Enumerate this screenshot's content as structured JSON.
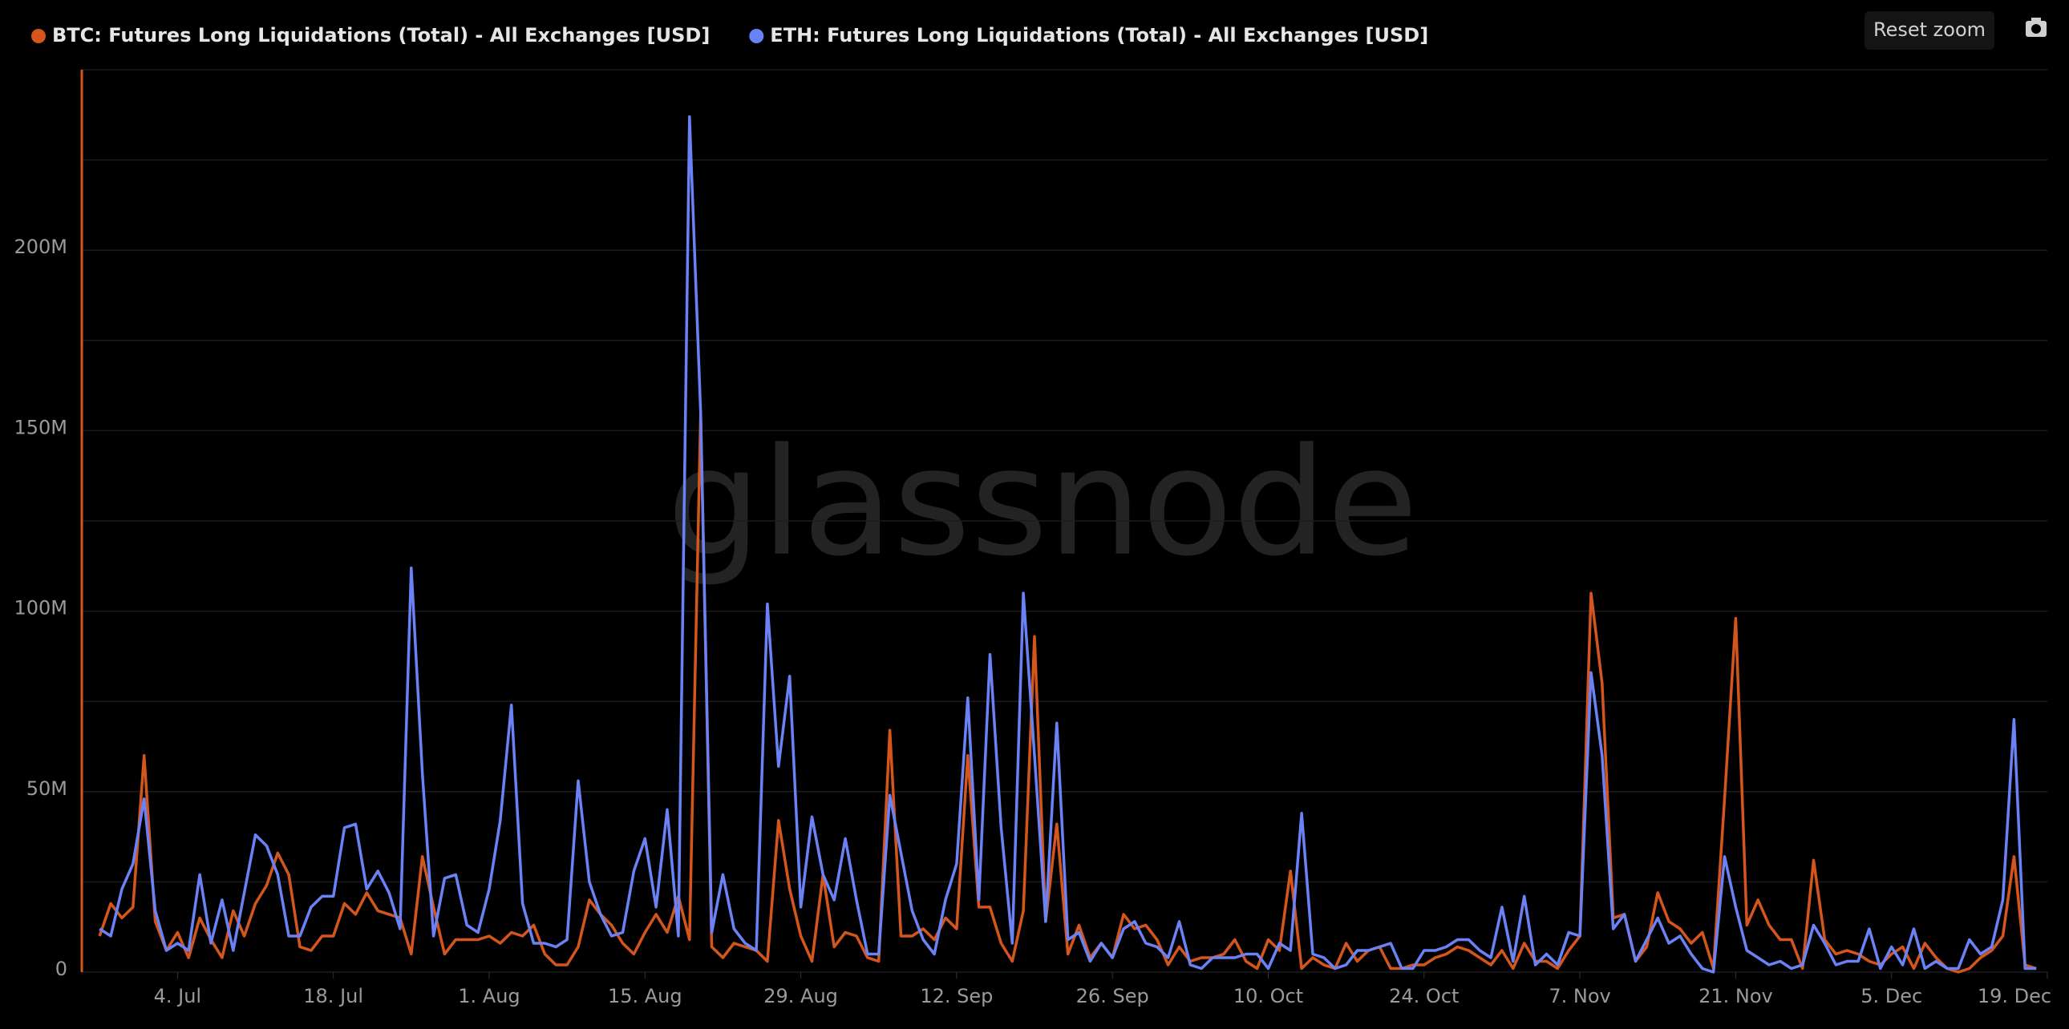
{
  "chart_data": {
    "type": "line",
    "watermark": "glassnode",
    "x": [
      -7,
      -6,
      -5,
      -4,
      -3,
      -2,
      -1,
      0,
      1,
      2,
      3,
      4,
      5,
      6,
      7,
      8,
      9,
      10,
      11,
      12,
      13,
      14,
      15,
      16,
      17,
      18,
      19,
      20,
      21,
      22,
      23,
      24,
      25,
      26,
      27,
      28,
      29,
      30,
      31,
      32,
      33,
      34,
      35,
      36,
      37,
      38,
      39,
      40,
      41,
      42,
      43,
      44,
      45,
      46,
      47,
      48,
      49,
      50,
      51,
      52,
      53,
      54,
      55,
      56,
      57,
      58,
      59,
      60,
      61,
      62,
      63,
      64,
      65,
      66,
      67,
      68,
      69,
      70,
      71,
      72,
      73,
      74,
      75,
      76,
      77,
      78,
      79,
      80,
      81,
      82,
      83,
      84,
      85,
      86,
      87,
      88,
      89,
      90,
      91,
      92,
      93,
      94,
      95,
      96,
      97,
      98,
      99,
      100,
      101,
      102,
      103,
      104,
      105,
      106,
      107,
      108,
      109,
      110,
      111,
      112,
      113,
      114,
      115,
      116,
      117,
      118,
      119,
      120,
      121,
      122,
      123,
      124,
      125,
      126,
      127,
      128,
      129,
      130,
      131,
      132,
      133,
      134,
      135,
      136,
      137,
      138,
      139,
      140,
      141,
      142,
      143,
      144,
      145,
      146,
      147,
      148,
      149,
      150,
      151,
      152,
      153,
      154,
      155,
      156,
      157,
      158,
      159,
      160,
      161,
      162,
      163,
      164,
      165,
      166,
      167
    ],
    "series": [
      {
        "name": "BTC: Futures Long Liquidations (Total) - All Exchanges [USD]",
        "color": "#d4561d",
        "values": [
          10000000.0,
          19000000.0,
          15000000.0,
          18000000.0,
          60000000.0,
          14000000.0,
          6000000.0,
          11000000.0,
          4000000.0,
          15000000.0,
          9000000.0,
          4000000.0,
          17000000.0,
          10000000.0,
          19000000.0,
          24000000.0,
          33000000.0,
          27000000.0,
          7000000.0,
          6000000.0,
          10000000.0,
          10000000.0,
          19000000.0,
          16000000.0,
          22000000.0,
          17000000.0,
          16000000.0,
          15000000.0,
          5000000.0,
          32000000.0,
          18000000.0,
          5000000.0,
          9000000.0,
          9000000.0,
          9000000.0,
          10000000.0,
          8000000.0,
          11000000.0,
          10000000.0,
          13000000.0,
          5000000.0,
          2000000.0,
          2000000.0,
          7000000.0,
          20000000.0,
          16000000.0,
          13000000.0,
          8000000.0,
          5000000.0,
          11000000.0,
          16000000.0,
          11000000.0,
          21000000.0,
          9000000.0,
          155000000.0,
          7000000.0,
          4000000.0,
          8000000.0,
          7000000.0,
          6000000.0,
          3000000.0,
          42000000.0,
          23000000.0,
          10000000.0,
          3000000.0,
          27000000.0,
          7000000.0,
          11000000.0,
          10000000.0,
          4000000.0,
          3000000.0,
          67000000.0,
          10000000.0,
          10000000.0,
          12000000.0,
          9000000.0,
          15000000.0,
          12000000.0,
          60000000.0,
          18000000.0,
          18000000.0,
          8000000.0,
          3000000.0,
          17000000.0,
          93000000.0,
          14000000.0,
          41000000.0,
          5000000.0,
          13000000.0,
          4000000.0,
          8000000.0,
          4000000.0,
          16000000.0,
          12000000.0,
          13000000.0,
          9000000.0,
          2000000.0,
          7000000.0,
          3000000.0,
          4000000.0,
          4000000.0,
          5000000.0,
          9000000.0,
          3000000.0,
          1000000.0,
          9000000.0,
          6000000.0,
          28000000.0,
          1000000.0,
          4000000.0,
          2000000.0,
          1000000.0,
          8000000.0,
          3000000.0,
          6000000.0,
          7000000.0,
          1000000.0,
          1000000.0,
          2000000.0,
          2000000.0,
          4000000.0,
          5000000.0,
          7000000.0,
          6000000.0,
          4000000.0,
          2000000.0,
          6000000.0,
          1000000.0,
          8000000.0,
          3000000.0,
          3000000.0,
          1000000.0,
          6000000.0,
          10000000.0,
          105000000.0,
          80000000.0,
          15000000.0,
          16000000.0,
          3000000.0,
          7000000.0,
          22000000.0,
          14000000.0,
          12000000.0,
          8000000.0,
          11000000.0,
          1000000.0,
          48000000.0,
          98000000.0,
          13000000.0,
          20000000.0,
          13000000.0,
          9000000.0,
          9000000.0,
          1000000.0,
          31000000.0,
          9000000.0,
          5000000.0,
          6000000.0,
          5000000.0,
          3000000.0,
          2000000.0,
          5000000.0,
          7000000.0,
          1000000.0,
          8000000.0,
          4000000.0,
          1000000.0,
          0,
          1000000.0,
          4000000.0,
          6000000.0,
          10000000.0,
          32000000.0,
          2000000.0,
          1000000.0
        ]
      },
      {
        "name": "ETH: Futures Long Liquidations (Total) - All Exchanges [USD]",
        "color": "#6b82f6",
        "values": [
          12000000.0,
          10000000.0,
          23000000.0,
          30000000.0,
          48000000.0,
          17000000.0,
          6000000.0,
          8000000.0,
          6000000.0,
          27000000.0,
          8000000.0,
          20000000.0,
          6000000.0,
          22000000.0,
          38000000.0,
          35000000.0,
          27000000.0,
          10000000.0,
          10000000.0,
          18000000.0,
          21000000.0,
          21000000.0,
          40000000.0,
          41000000.0,
          23000000.0,
          28000000.0,
          22000000.0,
          12000000.0,
          112000000.0,
          55000000.0,
          10000000.0,
          26000000.0,
          27000000.0,
          13000000.0,
          11000000.0,
          23000000.0,
          42000000.0,
          74000000.0,
          19000000.0,
          8000000.0,
          8000000.0,
          7000000.0,
          9000000.0,
          53000000.0,
          25000000.0,
          16000000.0,
          10000000.0,
          11000000.0,
          28000000.0,
          37000000.0,
          18000000.0,
          45000000.0,
          10000000.0,
          237000000.0,
          155000000.0,
          11000000.0,
          27000000.0,
          12000000.0,
          8000000.0,
          6000000.0,
          102000000.0,
          57000000.0,
          82000000.0,
          18000000.0,
          43000000.0,
          27000000.0,
          20000000.0,
          37000000.0,
          20000000.0,
          5000000.0,
          5000000.0,
          49000000.0,
          33000000.0,
          17000000.0,
          9000000.0,
          5000000.0,
          20000000.0,
          30000000.0,
          76000000.0,
          20000000.0,
          88000000.0,
          40000000.0,
          8000000.0,
          105000000.0,
          60000000.0,
          14000000.0,
          69000000.0,
          9000000.0,
          11000000.0,
          3000000.0,
          8000000.0,
          4000000.0,
          12000000.0,
          14000000.0,
          8000000.0,
          7000000.0,
          4000000.0,
          14000000.0,
          2000000.0,
          1000000.0,
          4000000.0,
          4000000.0,
          4000000.0,
          5000000.0,
          5000000.0,
          1000000.0,
          8000000.0,
          6000000.0,
          44000000.0,
          5000000.0,
          4000000.0,
          1000000.0,
          2000000.0,
          6000000.0,
          6000000.0,
          7000000.0,
          8000000.0,
          1000000.0,
          1000000.0,
          6000000.0,
          6000000.0,
          7000000.0,
          9000000.0,
          9000000.0,
          6000000.0,
          4000000.0,
          18000000.0,
          3000000.0,
          21000000.0,
          2000000.0,
          5000000.0,
          2000000.0,
          11000000.0,
          10000000.0,
          83000000.0,
          60000000.0,
          12000000.0,
          16000000.0,
          3000000.0,
          9000000.0,
          15000000.0,
          8000000.0,
          10000000.0,
          5000000.0,
          1000000.0,
          0,
          32000000.0,
          18000000.0,
          6000000.0,
          4000000.0,
          2000000.0,
          3000000.0,
          1000000.0,
          2000000.0,
          13000000.0,
          8000000.0,
          2000000.0,
          3000000.0,
          3000000.0,
          12000000.0,
          1000000.0,
          7000000.0,
          2000000.0,
          12000000.0,
          1000000.0,
          3000000.0,
          1000000.0,
          1000000.0,
          9000000.0,
          5000000.0,
          7000000.0,
          20000000.0,
          70000000.0,
          1000000.0,
          1000000.0
        ]
      }
    ],
    "xlim": [
      -8.6,
      168
    ],
    "xticks": [
      {
        "value": 0,
        "label": "4. Jul"
      },
      {
        "value": 14,
        "label": "18. Jul"
      },
      {
        "value": 28,
        "label": "1. Aug"
      },
      {
        "value": 42,
        "label": "15. Aug"
      },
      {
        "value": 56,
        "label": "29. Aug"
      },
      {
        "value": 70,
        "label": "12. Sep"
      },
      {
        "value": 84,
        "label": "26. Sep"
      },
      {
        "value": 98,
        "label": "10. Oct"
      },
      {
        "value": 112,
        "label": "24. Oct"
      },
      {
        "value": 126,
        "label": "7. Nov"
      },
      {
        "value": 140,
        "label": "21. Nov"
      },
      {
        "value": 154,
        "label": "5. Dec"
      },
      {
        "value": 168,
        "label": "19. Dec"
      }
    ],
    "ylim": [
      0,
      250000000
    ],
    "yticks": [
      0,
      {
        "value": 50000000,
        "label": "50M"
      },
      {
        "value": 100000000,
        "label": "100M"
      },
      {
        "value": 150000000,
        "label": "150M"
      },
      {
        "value": 200000000,
        "label": "200M"
      }
    ],
    "minor_grid": [
      25000000,
      75000000,
      125000000,
      175000000,
      225000000,
      250000000
    ],
    "grid": true
  },
  "ui": {
    "reset_zoom": "Reset zoom"
  }
}
